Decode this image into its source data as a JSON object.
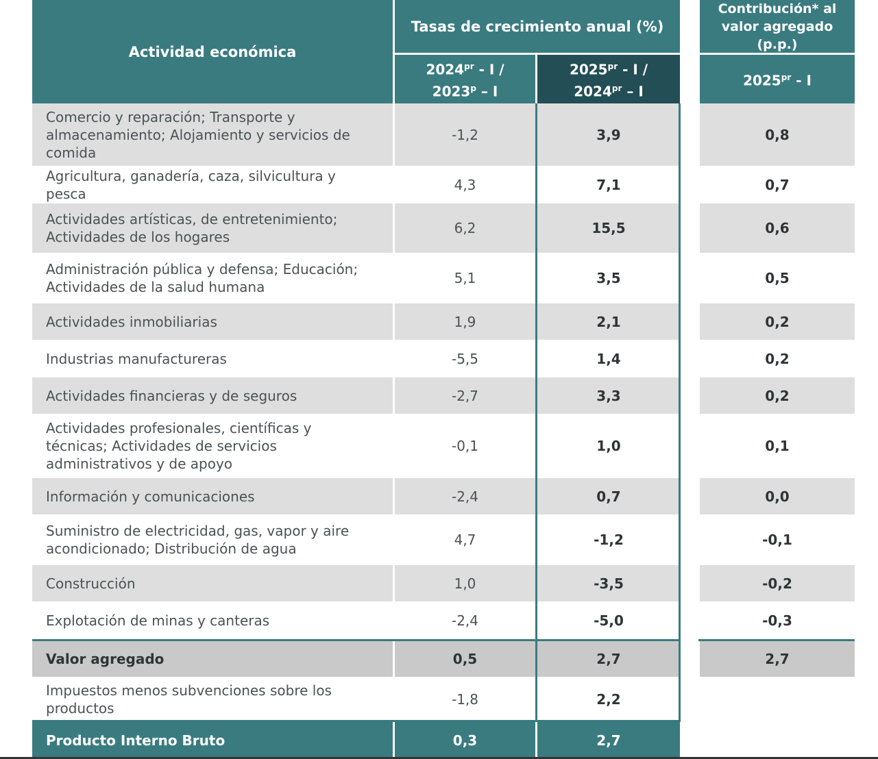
{
  "header": {
    "activity_col": "Actividad económica",
    "growth_title": "Tasas de crecimiento anual (%)",
    "growth_col1": {
      "line1": "2024",
      "sup1": "pr",
      "rest1": " - I /",
      "line2": "2023",
      "sup2": "p",
      "rest2": " – I"
    },
    "growth_col2": {
      "line1": "2025",
      "sup1": "pr",
      "rest1": " - I /",
      "line2": "2024",
      "sup2": "pr",
      "rest2": " – I"
    },
    "contrib_title_line1": "Contribución* al",
    "contrib_title_line2": "valor agregado (p.p.)",
    "contrib_col": {
      "line1": "2025",
      "sup1": "pr",
      "rest1": " - I"
    }
  },
  "rows": [
    {
      "label": "Comercio y reparación; Transporte y almacenamiento; Alojamiento y servicios de comida",
      "g1": "-1,2",
      "g2": "3,9",
      "c": "0,8"
    },
    {
      "label": "Agricultura, ganadería, caza, silvicultura y pesca",
      "g1": "4,3",
      "g2": "7,1",
      "c": "0,7"
    },
    {
      "label": "Actividades artísticas, de entretenimiento; Actividades de los hogares",
      "g1": "6,2",
      "g2": "15,5",
      "c": "0,6"
    },
    {
      "label": "Administración pública y defensa; Educación; Actividades de la salud humana",
      "g1": "5,1",
      "g2": "3,5",
      "c": "0,5"
    },
    {
      "label": "Actividades inmobiliarias",
      "g1": "1,9",
      "g2": "2,1",
      "c": "0,2"
    },
    {
      "label": "Industrias manufactureras",
      "g1": "-5,5",
      "g2": "1,4",
      "c": "0,2"
    },
    {
      "label": "Actividades financieras y de seguros",
      "g1": "-2,7",
      "g2": "3,3",
      "c": "0,2"
    },
    {
      "label": "Actividades profesionales, científicas y técnicas; Actividades de servicios administrativos y de apoyo",
      "g1": "-0,1",
      "g2": "1,0",
      "c": "0,1"
    },
    {
      "label": "Información y comunicaciones",
      "g1": "-2,4",
      "g2": "0,7",
      "c": "0,0"
    },
    {
      "label": "Suministro de electricidad, gas, vapor y aire acondicionado; Distribución de agua",
      "g1": "4,7",
      "g2": "-1,2",
      "c": "-0,1"
    },
    {
      "label": "Construcción",
      "g1": "1,0",
      "g2": "-3,5",
      "c": "-0,2"
    },
    {
      "label": "Explotación de minas y canteras",
      "g1": "-2,4",
      "g2": "-5,0",
      "c": "-0,3"
    }
  ],
  "value_added": {
    "label": "Valor agregado",
    "g1": "0,5",
    "g2": "2,7",
    "c": "2,7"
  },
  "taxes": {
    "label": "Impuestos menos subvenciones sobre los productos",
    "g1": "-1,8",
    "g2": "2,2"
  },
  "gdp": {
    "label": "Producto Interno Bruto",
    "g1": "0,3",
    "g2": "2,7"
  },
  "colors": {
    "teal": "#3a7b80",
    "dark_teal": "#234e55",
    "row_gray": "#dedede",
    "total_gray": "#c9c9c9"
  }
}
